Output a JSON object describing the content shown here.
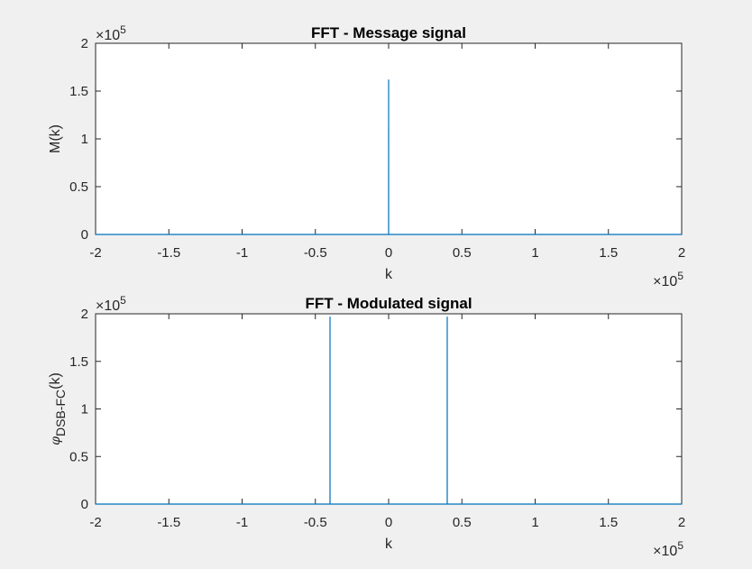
{
  "figure": {
    "background": "#f0f0f0",
    "axes_color": "#262626",
    "line_color": "#0072bd"
  },
  "chart_data": [
    {
      "type": "line",
      "title": "FFT - Message signal",
      "xlabel": "k",
      "ylabel": "M(k)",
      "x_exponent": "10",
      "x_exponent_power": "5",
      "y_exponent": "10",
      "y_exponent_power": "5",
      "xlim": [
        -2,
        2
      ],
      "ylim": [
        0,
        2
      ],
      "x_scale_note": "values in units of 10^5",
      "xticks": [
        -2,
        -1.5,
        -1,
        -0.5,
        0,
        0.5,
        1,
        1.5,
        2
      ],
      "xtick_labels": [
        "-2",
        "-1.5",
        "-1",
        "-0.5",
        "0",
        "0.5",
        "1",
        "1.5",
        "2"
      ],
      "yticks": [
        0,
        0.5,
        1,
        1.5,
        2
      ],
      "ytick_labels": [
        "0",
        "0.5",
        "1",
        "1.5",
        "2"
      ],
      "grid": false,
      "series": [
        {
          "x": [
            -2,
            -0.0001,
            0,
            0.0001,
            2
          ],
          "y": [
            0,
            0,
            1.62,
            0,
            0
          ]
        }
      ]
    },
    {
      "type": "line",
      "title": "FFT - Modulated signal",
      "xlabel": "k",
      "ylabel_symbol": "φ",
      "ylabel_sub": "DSB-FC",
      "ylabel_suffix": "(k)",
      "x_exponent": "10",
      "x_exponent_power": "5",
      "y_exponent": "10",
      "y_exponent_power": "5",
      "xlim": [
        -2,
        2
      ],
      "ylim": [
        0,
        2
      ],
      "xticks": [
        -2,
        -1.5,
        -1,
        -0.5,
        0,
        0.5,
        1,
        1.5,
        2
      ],
      "xtick_labels": [
        "-2",
        "-1.5",
        "-1",
        "-0.5",
        "0",
        "0.5",
        "1",
        "1.5",
        "2"
      ],
      "yticks": [
        0,
        0.5,
        1,
        1.5,
        2
      ],
      "ytick_labels": [
        "0",
        "0.5",
        "1",
        "1.5",
        "2"
      ],
      "grid": false,
      "series": [
        {
          "x": [
            -2,
            -0.4001,
            -0.4,
            -0.3999,
            0.3999,
            0.4,
            0.4001,
            2
          ],
          "y": [
            0,
            0,
            1.97,
            0,
            0,
            1.97,
            0,
            0
          ]
        }
      ]
    }
  ]
}
